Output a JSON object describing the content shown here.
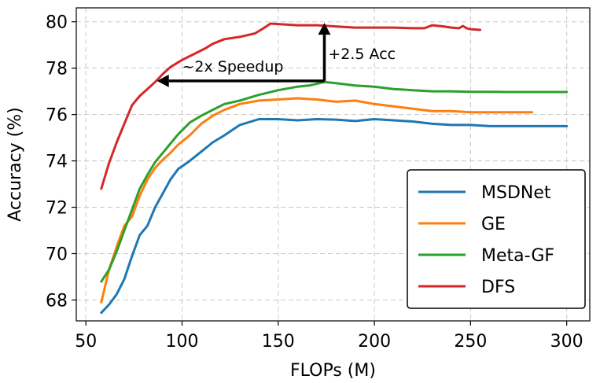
{
  "chart_data": {
    "type": "line",
    "xlabel": "FLOPs (M)",
    "ylabel": "Accuracy (%)",
    "xlim": [
      45,
      312
    ],
    "ylim": [
      67.1,
      80.6
    ],
    "xticks": [
      50,
      100,
      150,
      200,
      250,
      300
    ],
    "yticks": [
      68,
      70,
      72,
      74,
      76,
      78,
      80
    ],
    "grid": true,
    "legend_position": "lower-right",
    "series": [
      {
        "name": "MSDNet",
        "color": "#1f77b4",
        "x": [
          58,
          62,
          66,
          70,
          74,
          78,
          82,
          86,
          90,
          94,
          98,
          104,
          110,
          116,
          122,
          130,
          140,
          150,
          160,
          170,
          180,
          190,
          200,
          210,
          220,
          230,
          240,
          250,
          260,
          270,
          280,
          300
        ],
        "y": [
          67.45,
          67.8,
          68.25,
          68.9,
          69.9,
          70.8,
          71.2,
          72.0,
          72.6,
          73.2,
          73.65,
          74.0,
          74.4,
          74.8,
          75.1,
          75.55,
          75.8,
          75.8,
          75.75,
          75.8,
          75.78,
          75.72,
          75.8,
          75.75,
          75.7,
          75.6,
          75.55,
          75.55,
          75.5,
          75.5,
          75.5,
          75.5
        ]
      },
      {
        "name": "GE",
        "color": "#ff7f0e",
        "x": [
          58,
          62,
          66,
          70,
          74,
          78,
          82,
          86,
          90,
          94,
          98,
          104,
          110,
          116,
          122,
          130,
          140,
          150,
          160,
          170,
          180,
          190,
          200,
          210,
          220,
          230,
          240,
          250,
          260,
          270,
          282
        ],
        "y": [
          67.9,
          69.3,
          70.3,
          71.2,
          71.6,
          72.5,
          73.2,
          73.7,
          74.05,
          74.35,
          74.7,
          75.1,
          75.6,
          75.95,
          76.2,
          76.45,
          76.6,
          76.65,
          76.7,
          76.65,
          76.55,
          76.6,
          76.45,
          76.35,
          76.25,
          76.15,
          76.15,
          76.1,
          76.1,
          76.1,
          76.1
        ]
      },
      {
        "name": "Meta-GF",
        "color": "#2ca02c",
        "x": [
          58,
          62,
          66,
          70,
          74,
          78,
          82,
          86,
          90,
          94,
          98,
          104,
          110,
          116,
          122,
          130,
          140,
          150,
          160,
          166,
          174,
          180,
          190,
          200,
          210,
          220,
          230,
          240,
          250,
          260,
          270,
          280,
          300
        ],
        "y": [
          68.8,
          69.3,
          70.1,
          71.0,
          71.9,
          72.8,
          73.4,
          73.95,
          74.35,
          74.75,
          75.15,
          75.65,
          75.95,
          76.2,
          76.45,
          76.6,
          76.85,
          77.05,
          77.2,
          77.25,
          77.4,
          77.35,
          77.25,
          77.2,
          77.1,
          77.05,
          77.0,
          77.0,
          76.98,
          76.98,
          76.97,
          76.97,
          76.97
        ]
      },
      {
        "name": "DFS",
        "color": "#d62728",
        "x": [
          58,
          62,
          66,
          70,
          74,
          78,
          82,
          86,
          90,
          94,
          100,
          106,
          112,
          116,
          122,
          130,
          138,
          142,
          146,
          150,
          160,
          170,
          180,
          190,
          200,
          210,
          220,
          226,
          230,
          236,
          240,
          244,
          246,
          248,
          250,
          255
        ],
        "y": [
          72.8,
          73.9,
          74.8,
          75.6,
          76.4,
          76.8,
          77.1,
          77.4,
          77.75,
          78.05,
          78.35,
          78.6,
          78.85,
          79.05,
          79.25,
          79.35,
          79.5,
          79.7,
          79.92,
          79.9,
          79.85,
          79.85,
          79.8,
          79.75,
          79.75,
          79.75,
          79.72,
          79.72,
          79.85,
          79.8,
          79.75,
          79.72,
          79.82,
          79.72,
          79.68,
          79.65
        ]
      }
    ],
    "annotations": [
      {
        "text": "~2x Speedup",
        "type": "arrow",
        "from": [
          174,
          77.45
        ],
        "to": [
          87,
          77.45
        ],
        "text_at": [
          100,
          77.85
        ]
      },
      {
        "text": "+2.5 Acc",
        "type": "arrow",
        "from": [
          174,
          77.45
        ],
        "to": [
          174,
          79.95
        ],
        "text_at": [
          176,
          78.4
        ]
      }
    ]
  }
}
